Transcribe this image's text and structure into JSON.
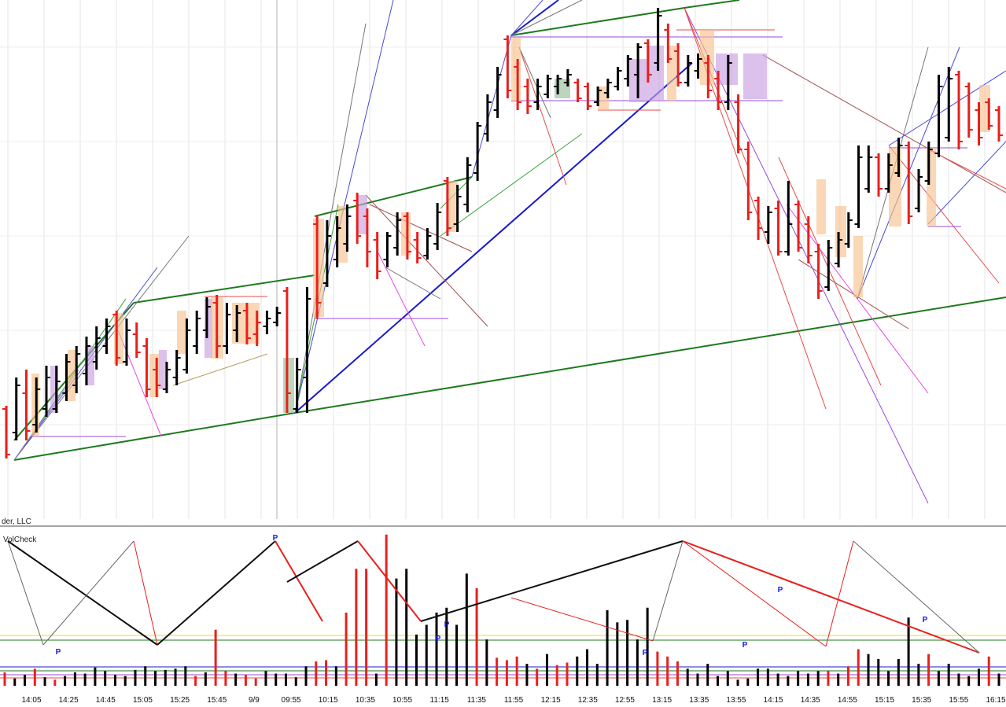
{
  "panel": {
    "copyright_fragment": "der, LLC",
    "indicator_name": "VolCheck",
    "pivot_marker": "P"
  },
  "colors": {
    "bull_bar": "#000000",
    "bear_bar": "#e8201c",
    "trend_green": "#1e7a1e",
    "trend_blue": "#1a1acc",
    "fib_orange_fill": "#f7c28f",
    "fib_purple_fill": "#c7a0e0",
    "grid": "#e4e4e4",
    "zigzag": "#111111",
    "zigzag_red": "#e8201c",
    "level_yellow": "#e6e600"
  },
  "chart_data": [
    {
      "type": "candlestick",
      "title": "",
      "x_tick_labels": [
        "14:05",
        "14:25",
        "14:45",
        "15:05",
        "15:25",
        "15:45",
        "9/9",
        "09:55",
        "10:15",
        "10:35",
        "10:55",
        "11:15",
        "11:35",
        "11:55",
        "12:15",
        "12:35",
        "12:55",
        "13:15",
        "13:35",
        "13:55",
        "14:15",
        "14:35",
        "14:55",
        "15:15",
        "15:35",
        "15:55",
        "16:15"
      ],
      "grid": true,
      "bars": [
        {
          "c": "red",
          "o": 520,
          "h": 516,
          "l": 583,
          "cl": 578
        },
        {
          "c": "black",
          "o": 550,
          "h": 480,
          "l": 560,
          "cl": 490
        },
        {
          "c": "red",
          "o": 500,
          "h": 470,
          "l": 560,
          "cl": 548
        },
        {
          "c": "black",
          "o": 540,
          "h": 480,
          "l": 550,
          "cl": 495
        },
        {
          "c": "black",
          "o": 520,
          "h": 465,
          "l": 530,
          "cl": 480
        },
        {
          "c": "black",
          "o": 520,
          "h": 465,
          "l": 525,
          "cl": 485
        },
        {
          "c": "black",
          "o": 500,
          "h": 450,
          "l": 510,
          "cl": 460
        },
        {
          "c": "black",
          "o": 490,
          "h": 440,
          "l": 500,
          "cl": 450
        },
        {
          "c": "black",
          "o": 475,
          "h": 428,
          "l": 490,
          "cl": 440
        },
        {
          "c": "black",
          "o": 460,
          "h": 415,
          "l": 470,
          "cl": 430
        },
        {
          "c": "black",
          "o": 440,
          "h": 405,
          "l": 450,
          "cl": 415
        },
        {
          "c": "red",
          "o": 400,
          "h": 395,
          "l": 465,
          "cl": 455
        },
        {
          "c": "black",
          "o": 460,
          "h": 405,
          "l": 465,
          "cl": 420
        },
        {
          "c": "red",
          "o": 425,
          "h": 410,
          "l": 455,
          "cl": 448
        },
        {
          "c": "red",
          "o": 440,
          "h": 430,
          "l": 505,
          "cl": 495
        },
        {
          "c": "red",
          "o": 470,
          "h": 455,
          "l": 505,
          "cl": 490
        },
        {
          "c": "black",
          "o": 495,
          "h": 460,
          "l": 500,
          "cl": 470
        },
        {
          "c": "black",
          "o": 480,
          "h": 445,
          "l": 490,
          "cl": 455
        },
        {
          "c": "black",
          "o": 470,
          "h": 405,
          "l": 475,
          "cl": 420
        },
        {
          "c": "black",
          "o": 440,
          "h": 395,
          "l": 450,
          "cl": 405
        },
        {
          "c": "black",
          "o": 420,
          "h": 378,
          "l": 430,
          "cl": 390
        },
        {
          "c": "red",
          "o": 385,
          "h": 375,
          "l": 455,
          "cl": 440
        },
        {
          "c": "black",
          "o": 440,
          "h": 385,
          "l": 450,
          "cl": 400
        },
        {
          "c": "black",
          "o": 420,
          "h": 388,
          "l": 435,
          "cl": 398
        },
        {
          "c": "red",
          "o": 395,
          "h": 385,
          "l": 438,
          "cl": 430
        },
        {
          "c": "red",
          "o": 425,
          "h": 395,
          "l": 440,
          "cl": 410
        },
        {
          "c": "black",
          "o": 415,
          "h": 395,
          "l": 425,
          "cl": 405
        },
        {
          "c": "black",
          "o": 410,
          "h": 390,
          "l": 415,
          "cl": 398
        },
        {
          "c": "red",
          "o": 370,
          "h": 365,
          "l": 525,
          "cl": 500
        },
        {
          "c": "black",
          "o": 520,
          "h": 455,
          "l": 525,
          "cl": 470
        },
        {
          "c": "black",
          "o": 480,
          "h": 365,
          "l": 525,
          "cl": 380
        },
        {
          "c": "red",
          "o": 285,
          "h": 275,
          "l": 405,
          "cl": 385
        },
        {
          "c": "black",
          "o": 360,
          "h": 280,
          "l": 365,
          "cl": 300
        },
        {
          "c": "black",
          "o": 330,
          "h": 275,
          "l": 340,
          "cl": 290
        },
        {
          "c": "black",
          "o": 310,
          "h": 260,
          "l": 320,
          "cl": 275
        },
        {
          "c": "red",
          "o": 255,
          "h": 245,
          "l": 310,
          "cl": 300
        },
        {
          "c": "red",
          "o": 275,
          "h": 265,
          "l": 340,
          "cl": 320
        },
        {
          "c": "red",
          "o": 305,
          "h": 295,
          "l": 355,
          "cl": 345
        },
        {
          "c": "black",
          "o": 330,
          "h": 295,
          "l": 340,
          "cl": 300
        },
        {
          "c": "black",
          "o": 315,
          "h": 270,
          "l": 325,
          "cl": 280
        },
        {
          "c": "red",
          "o": 275,
          "h": 270,
          "l": 330,
          "cl": 320
        },
        {
          "c": "red",
          "o": 305,
          "h": 295,
          "l": 335,
          "cl": 328
        },
        {
          "c": "black",
          "o": 325,
          "h": 290,
          "l": 330,
          "cl": 300
        },
        {
          "c": "black",
          "o": 310,
          "h": 258,
          "l": 318,
          "cl": 270
        },
        {
          "c": "red",
          "o": 230,
          "h": 225,
          "l": 300,
          "cl": 290
        },
        {
          "c": "black",
          "o": 285,
          "h": 235,
          "l": 295,
          "cl": 250
        },
        {
          "c": "black",
          "o": 260,
          "h": 200,
          "l": 270,
          "cl": 210
        },
        {
          "c": "black",
          "o": 220,
          "h": 155,
          "l": 230,
          "cl": 160
        },
        {
          "c": "black",
          "o": 170,
          "h": 120,
          "l": 180,
          "cl": 130
        },
        {
          "c": "black",
          "o": 140,
          "h": 85,
          "l": 150,
          "cl": 95
        },
        {
          "c": "red",
          "o": 50,
          "h": 45,
          "l": 125,
          "cl": 115
        },
        {
          "c": "red",
          "o": 85,
          "h": 75,
          "l": 140,
          "cl": 130
        },
        {
          "c": "red",
          "o": 110,
          "h": 100,
          "l": 145,
          "cl": 135
        },
        {
          "c": "black",
          "o": 130,
          "h": 100,
          "l": 140,
          "cl": 110
        },
        {
          "c": "black",
          "o": 120,
          "h": 95,
          "l": 125,
          "cl": 100
        },
        {
          "c": "black",
          "o": 110,
          "h": 95,
          "l": 120,
          "cl": 100
        },
        {
          "c": "black",
          "o": 105,
          "h": 88,
          "l": 110,
          "cl": 95
        },
        {
          "c": "red",
          "o": 105,
          "h": 100,
          "l": 130,
          "cl": 125
        },
        {
          "c": "red",
          "o": 110,
          "h": 105,
          "l": 140,
          "cl": 135
        },
        {
          "c": "black",
          "o": 130,
          "h": 110,
          "l": 135,
          "cl": 115
        },
        {
          "c": "black",
          "o": 118,
          "h": 100,
          "l": 125,
          "cl": 105
        },
        {
          "c": "black",
          "o": 110,
          "h": 85,
          "l": 115,
          "cl": 90
        },
        {
          "c": "black",
          "o": 100,
          "h": 70,
          "l": 110,
          "cl": 75
        },
        {
          "c": "black",
          "o": 95,
          "h": 55,
          "l": 125,
          "cl": 60
        },
        {
          "c": "red",
          "o": 55,
          "h": 50,
          "l": 105,
          "cl": 95
        },
        {
          "c": "black",
          "o": 80,
          "h": 10,
          "l": 90,
          "cl": 20
        },
        {
          "c": "red",
          "o": 38,
          "h": 30,
          "l": 80,
          "cl": 75
        },
        {
          "c": "red",
          "o": 65,
          "h": 55,
          "l": 110,
          "cl": 105
        },
        {
          "c": "black",
          "o": 105,
          "h": 70,
          "l": 110,
          "cl": 80
        },
        {
          "c": "black",
          "o": 90,
          "h": 68,
          "l": 100,
          "cl": 75
        },
        {
          "c": "red",
          "o": 80,
          "h": 70,
          "l": 125,
          "cl": 115
        },
        {
          "c": "red",
          "o": 100,
          "h": 90,
          "l": 140,
          "cl": 130
        },
        {
          "c": "black",
          "o": 130,
          "h": 70,
          "l": 140,
          "cl": 80
        },
        {
          "c": "red",
          "o": 130,
          "h": 120,
          "l": 195,
          "cl": 190
        },
        {
          "c": "red",
          "o": 190,
          "h": 180,
          "l": 280,
          "cl": 270
        },
        {
          "c": "red",
          "o": 255,
          "h": 250,
          "l": 305,
          "cl": 290
        },
        {
          "c": "black",
          "o": 295,
          "h": 262,
          "l": 310,
          "cl": 270
        },
        {
          "c": "red",
          "o": 265,
          "h": 255,
          "l": 325,
          "cl": 320
        },
        {
          "c": "black",
          "o": 320,
          "h": 230,
          "l": 325,
          "cl": 285
        },
        {
          "c": "red",
          "o": 260,
          "h": 255,
          "l": 320,
          "cl": 315
        },
        {
          "c": "red",
          "o": 285,
          "h": 275,
          "l": 335,
          "cl": 325
        },
        {
          "c": "red",
          "o": 320,
          "h": 310,
          "l": 380,
          "cl": 370
        },
        {
          "c": "black",
          "o": 365,
          "h": 305,
          "l": 370,
          "cl": 315
        },
        {
          "c": "black",
          "o": 335,
          "h": 295,
          "l": 340,
          "cl": 305
        },
        {
          "c": "black",
          "o": 310,
          "h": 270,
          "l": 315,
          "cl": 280
        },
        {
          "c": "black",
          "o": 285,
          "h": 185,
          "l": 290,
          "cl": 200
        },
        {
          "c": "black",
          "o": 240,
          "h": 185,
          "l": 245,
          "cl": 200
        },
        {
          "c": "red",
          "o": 200,
          "h": 195,
          "l": 250,
          "cl": 240
        },
        {
          "c": "black",
          "o": 240,
          "h": 195,
          "l": 245,
          "cl": 210
        },
        {
          "c": "black",
          "o": 220,
          "h": 175,
          "l": 225,
          "cl": 185
        },
        {
          "c": "red",
          "o": 185,
          "h": 180,
          "l": 285,
          "cl": 275
        },
        {
          "c": "black",
          "o": 265,
          "h": 215,
          "l": 270,
          "cl": 225
        },
        {
          "c": "black",
          "o": 230,
          "h": 180,
          "l": 235,
          "cl": 190
        },
        {
          "c": "black",
          "o": 195,
          "h": 95,
          "l": 200,
          "cl": 110
        },
        {
          "c": "black",
          "o": 175,
          "h": 85,
          "l": 180,
          "cl": 100
        },
        {
          "c": "red",
          "o": 95,
          "h": 90,
          "l": 190,
          "cl": 180
        },
        {
          "c": "red",
          "o": 110,
          "h": 105,
          "l": 175,
          "cl": 165
        },
        {
          "c": "red",
          "o": 140,
          "h": 130,
          "l": 185,
          "cl": 175
        },
        {
          "c": "red",
          "o": 130,
          "h": 125,
          "l": 165,
          "cl": 160
        },
        {
          "c": "red",
          "o": 140,
          "h": 135,
          "l": 180,
          "cl": 172
        }
      ]
    },
    {
      "type": "bar",
      "title": "VolCheck",
      "pivot_marker": "P",
      "volumes": [
        {
          "c": "red",
          "v": 55
        },
        {
          "c": "black",
          "v": 30
        },
        {
          "c": "black",
          "v": 45
        },
        {
          "c": "red",
          "v": 70
        },
        {
          "c": "black",
          "v": 35
        },
        {
          "c": "red",
          "v": 25
        },
        {
          "c": "black",
          "v": 40
        },
        {
          "c": "black",
          "v": 55
        },
        {
          "c": "black",
          "v": 50
        },
        {
          "c": "black",
          "v": 75
        },
        {
          "c": "black",
          "v": 60
        },
        {
          "c": "black",
          "v": 45
        },
        {
          "c": "black",
          "v": 40
        },
        {
          "c": "black",
          "v": 65
        },
        {
          "c": "black",
          "v": 80
        },
        {
          "c": "black",
          "v": 60
        },
        {
          "c": "black",
          "v": 65
        },
        {
          "c": "black",
          "v": 70
        },
        {
          "c": "black",
          "v": 80
        },
        {
          "c": "red",
          "v": 40
        },
        {
          "c": "black",
          "v": 55
        },
        {
          "c": "red",
          "v": 230
        },
        {
          "c": "red",
          "v": 60
        },
        {
          "c": "black",
          "v": 50
        },
        {
          "c": "red",
          "v": 45
        },
        {
          "c": "red",
          "v": 30
        },
        {
          "c": "black",
          "v": 60
        },
        {
          "c": "black",
          "v": 50
        },
        {
          "c": "black",
          "v": 50
        },
        {
          "c": "black",
          "v": 35
        },
        {
          "c": "black",
          "v": 80
        },
        {
          "c": "red",
          "v": 100
        },
        {
          "c": "red",
          "v": 105
        },
        {
          "c": "black",
          "v": 80
        },
        {
          "c": "red",
          "v": 300
        },
        {
          "c": "red",
          "v": 480
        },
        {
          "c": "red",
          "v": 480
        },
        {
          "c": "black",
          "v": 50
        },
        {
          "c": "red",
          "v": 620
        },
        {
          "c": "black",
          "v": 440
        },
        {
          "c": "black",
          "v": 480
        },
        {
          "c": "black",
          "v": 210
        },
        {
          "c": "black",
          "v": 250
        },
        {
          "c": "black",
          "v": 300
        },
        {
          "c": "black",
          "v": 320
        },
        {
          "c": "black",
          "v": 250
        },
        {
          "c": "black",
          "v": 460
        },
        {
          "c": "red",
          "v": 400
        },
        {
          "c": "black",
          "v": 190
        },
        {
          "c": "red",
          "v": 115
        },
        {
          "c": "red",
          "v": 105
        },
        {
          "c": "red",
          "v": 120
        },
        {
          "c": "black",
          "v": 90
        },
        {
          "c": "red",
          "v": 70
        },
        {
          "c": "black",
          "v": 130
        },
        {
          "c": "red",
          "v": 85
        },
        {
          "c": "red",
          "v": 95
        },
        {
          "c": "black",
          "v": 120
        },
        {
          "c": "black",
          "v": 150
        },
        {
          "c": "black",
          "v": 90
        },
        {
          "c": "black",
          "v": 310
        },
        {
          "c": "black",
          "v": 260
        },
        {
          "c": "black",
          "v": 270
        },
        {
          "c": "black",
          "v": 190
        },
        {
          "c": "black",
          "v": 320
        },
        {
          "c": "red",
          "v": 140
        },
        {
          "c": "red",
          "v": 120
        },
        {
          "c": "red",
          "v": 100
        },
        {
          "c": "black",
          "v": 70
        },
        {
          "c": "black",
          "v": 50
        },
        {
          "c": "black",
          "v": 90
        },
        {
          "c": "black",
          "v": 40
        },
        {
          "c": "black",
          "v": 60
        },
        {
          "c": "black",
          "v": 25
        },
        {
          "c": "black",
          "v": 30
        },
        {
          "c": "black",
          "v": 70
        },
        {
          "c": "black",
          "v": 70
        },
        {
          "c": "black",
          "v": 50
        },
        {
          "c": "black",
          "v": 40
        },
        {
          "c": "black",
          "v": 60
        },
        {
          "c": "black",
          "v": 50
        },
        {
          "c": "black",
          "v": 60
        },
        {
          "c": "red",
          "v": 60
        },
        {
          "c": "black",
          "v": 50
        },
        {
          "c": "red",
          "v": 80
        },
        {
          "c": "red",
          "v": 150
        },
        {
          "c": "black",
          "v": 130
        },
        {
          "c": "black",
          "v": 110
        },
        {
          "c": "black",
          "v": 60
        },
        {
          "c": "black",
          "v": 110
        },
        {
          "c": "black",
          "v": 280
        },
        {
          "c": "black",
          "v": 90
        },
        {
          "c": "red",
          "v": 130
        },
        {
          "c": "black",
          "v": 60
        },
        {
          "c": "black",
          "v": 90
        },
        {
          "c": "black",
          "v": 50
        },
        {
          "c": "black",
          "v": 40
        },
        {
          "c": "black",
          "v": 70
        },
        {
          "c": "red",
          "v": 120
        },
        {
          "c": "black",
          "v": 50
        }
      ]
    }
  ]
}
